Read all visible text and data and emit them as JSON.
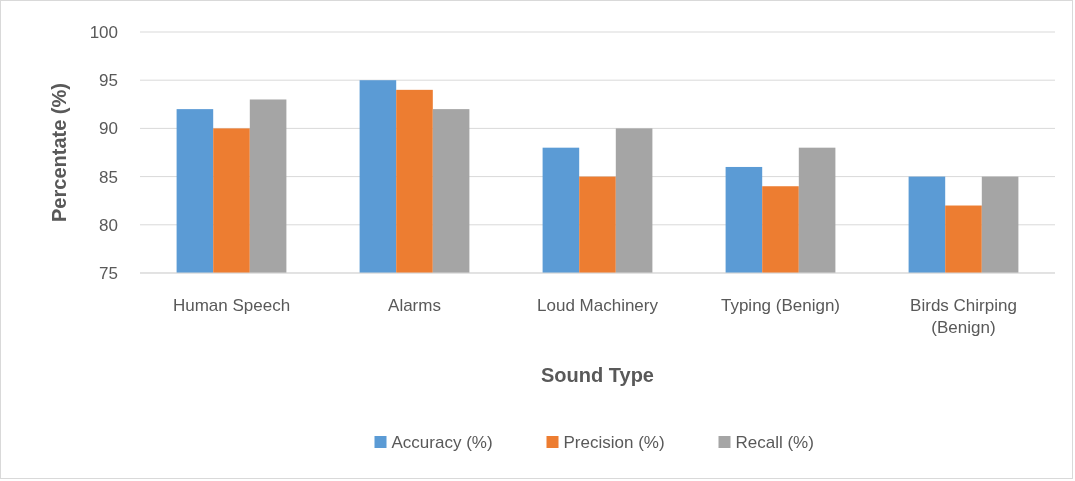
{
  "chart_data": {
    "type": "bar",
    "xlabel": "Sound Type",
    "ylabel": "Percentate (%)",
    "categories": [
      "Human Speech",
      "Alarms",
      "Loud Machinery",
      "Typing (Benign)",
      "Birds Chirping (Benign)"
    ],
    "series": [
      {
        "name": "Accuracy (%)",
        "color": "#5b9bd5",
        "values": [
          92,
          95,
          88,
          86,
          85
        ]
      },
      {
        "name": "Precision (%)",
        "color": "#ed7d31",
        "values": [
          90,
          94,
          85,
          84,
          82
        ]
      },
      {
        "name": "Recall (%)",
        "color": "#a5a5a5",
        "values": [
          93,
          92,
          90,
          88,
          85
        ]
      }
    ],
    "ylim": [
      75,
      100
    ],
    "yticks": [
      75,
      80,
      85,
      90,
      95,
      100
    ],
    "grid": "y",
    "legend": "bottom"
  }
}
